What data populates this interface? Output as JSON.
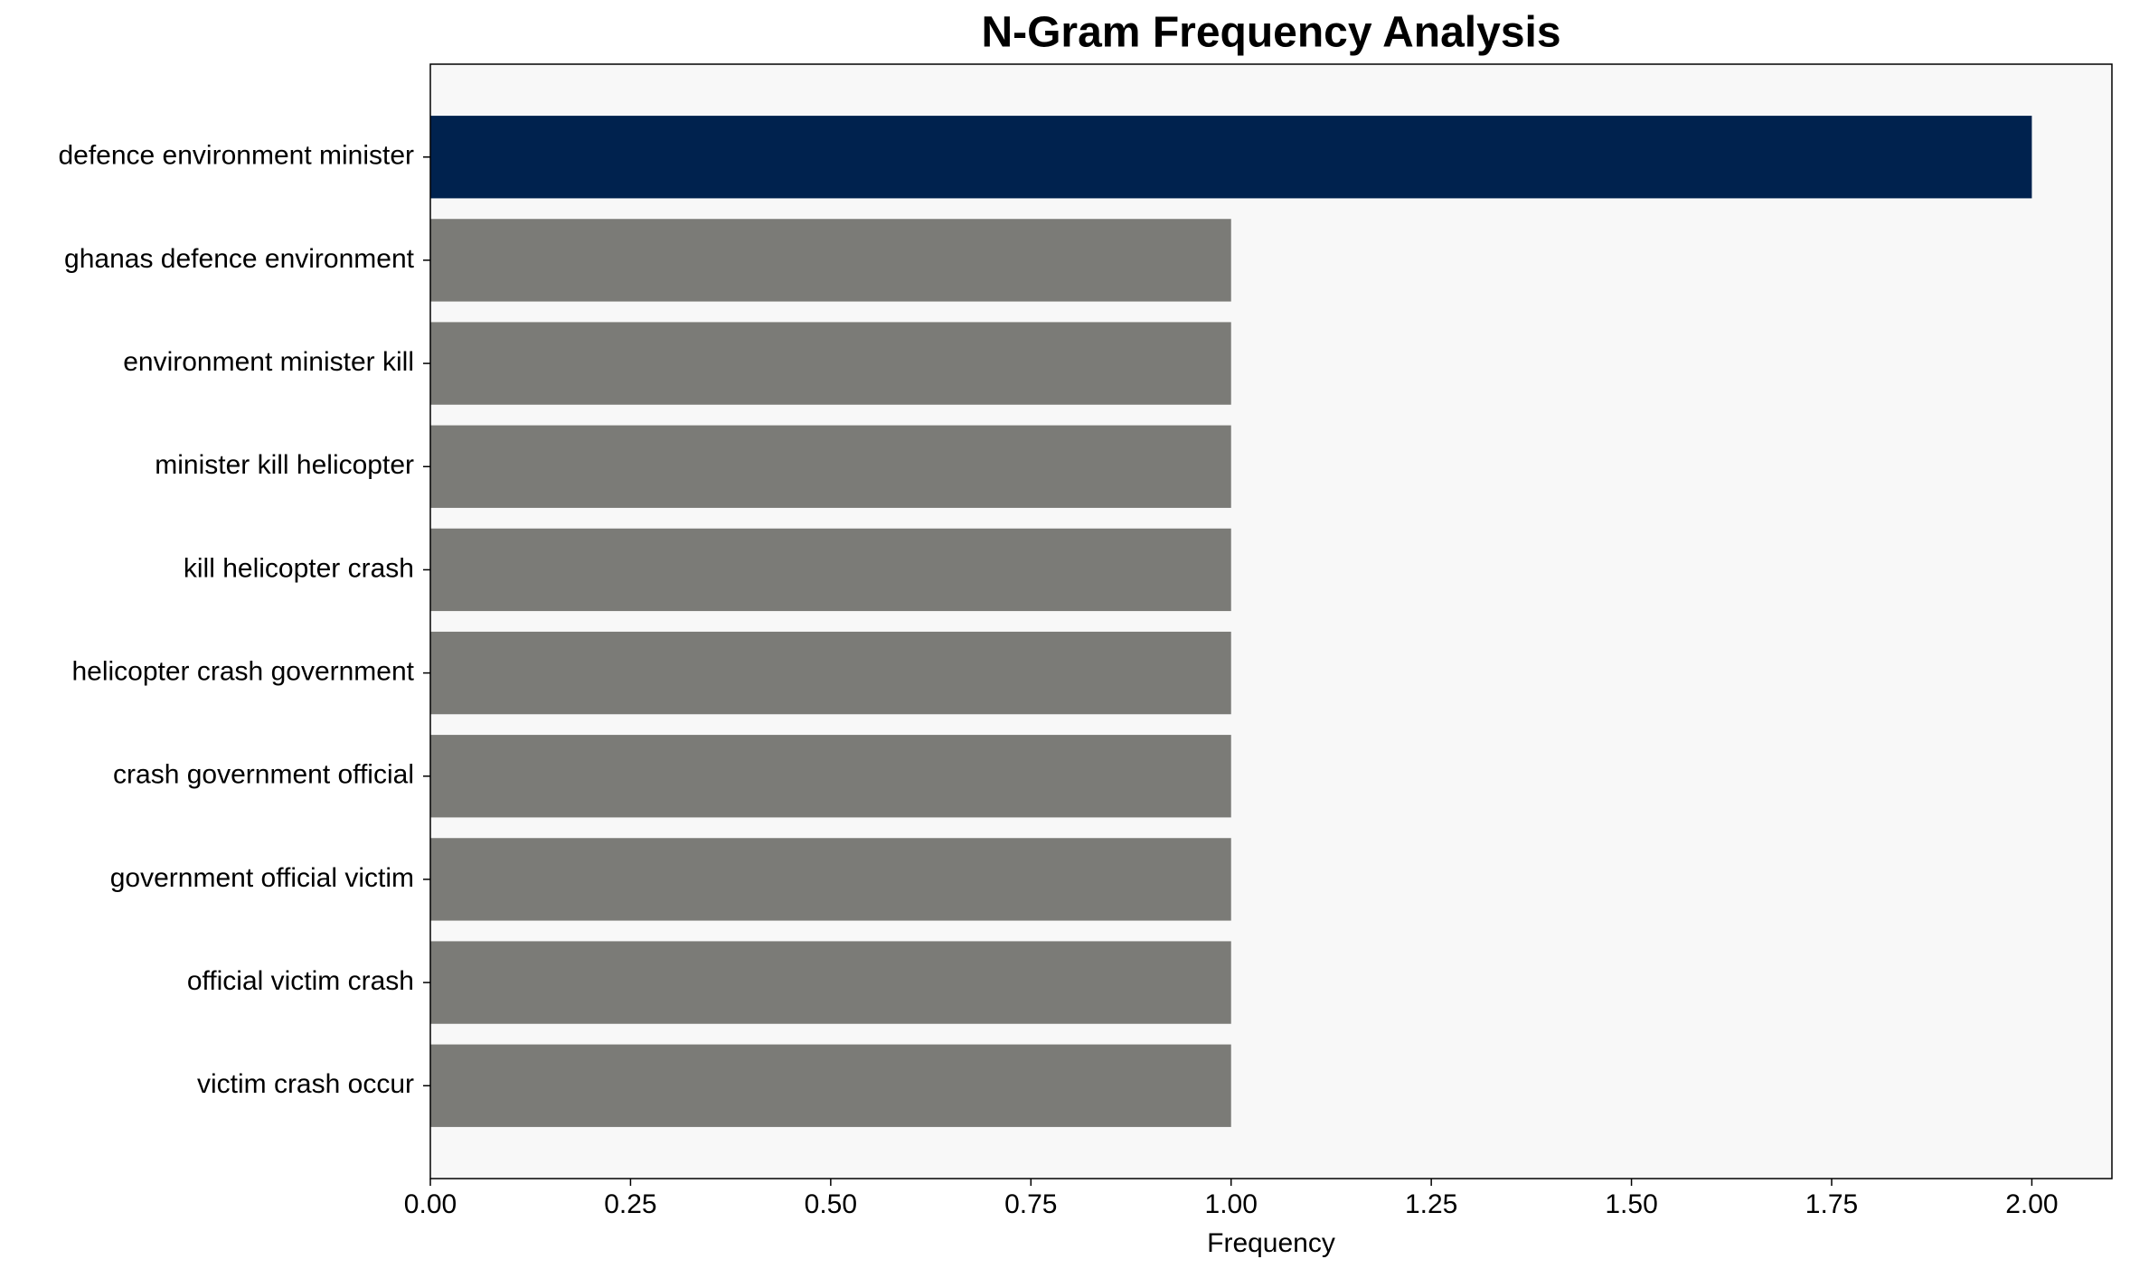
{
  "chart_data": {
    "type": "barh",
    "title": "N-Gram Frequency Analysis",
    "x_label": "Frequency",
    "categories": [
      "defence environment minister",
      "ghanas defence environment",
      "environment minister kill",
      "minister kill helicopter",
      "kill helicopter crash",
      "helicopter crash government",
      "crash government official",
      "government official victim",
      "official victim crash",
      "victim crash occur"
    ],
    "values": [
      2,
      1,
      1,
      1,
      1,
      1,
      1,
      1,
      1,
      1
    ],
    "colors": [
      "#00224e",
      "#7b7b77",
      "#7b7b77",
      "#7b7b77",
      "#7b7b77",
      "#7b7b77",
      "#7b7b77",
      "#7b7b77",
      "#7b7b77",
      "#7b7b77"
    ],
    "xlim": [
      0,
      2.1
    ],
    "xticks": [
      {
        "value": 0,
        "label": "0.00"
      },
      {
        "value": 0.25,
        "label": "0.25"
      },
      {
        "value": 0.5,
        "label": "0.50"
      },
      {
        "value": 0.75,
        "label": "0.75"
      },
      {
        "value": 1,
        "label": "1.00"
      },
      {
        "value": 1.25,
        "label": "1.25"
      },
      {
        "value": 1.5,
        "label": "1.50"
      },
      {
        "value": 1.75,
        "label": "1.75"
      },
      {
        "value": 2,
        "label": "2.00"
      }
    ],
    "grid": false
  }
}
